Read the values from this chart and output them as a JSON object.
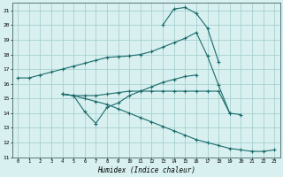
{
  "xlabel": "Humidex (Indice chaleur)",
  "bg_color": "#d8f0f0",
  "grid_color": "#a8d0d0",
  "line_color": "#1a6b6b",
  "xlim": [
    -0.5,
    23.5
  ],
  "ylim": [
    11,
    21.5
  ],
  "yticks": [
    11,
    12,
    13,
    14,
    15,
    16,
    17,
    18,
    19,
    20,
    21
  ],
  "xticks": [
    0,
    1,
    2,
    3,
    4,
    5,
    6,
    7,
    8,
    9,
    10,
    11,
    12,
    13,
    14,
    15,
    16,
    17,
    18,
    19,
    20,
    21,
    22,
    23
  ],
  "s1x": [
    0,
    1,
    2,
    3,
    4,
    5,
    6,
    7,
    8,
    9,
    10,
    11,
    12,
    13,
    14,
    15,
    16,
    17,
    18,
    19,
    20
  ],
  "s1y": [
    16.4,
    16.4,
    16.6,
    16.8,
    17.0,
    17.2,
    17.4,
    17.6,
    17.8,
    17.85,
    17.9,
    18.0,
    18.2,
    18.5,
    18.8,
    19.1,
    19.5,
    17.9,
    15.9,
    14.0,
    13.9
  ],
  "s2x": [
    4,
    5,
    6,
    7,
    8,
    9,
    10,
    11,
    12,
    13,
    14,
    15,
    16,
    17,
    18,
    19
  ],
  "s2y": [
    15.3,
    15.2,
    15.2,
    15.2,
    15.3,
    15.4,
    15.5,
    15.5,
    15.5,
    15.5,
    15.5,
    15.5,
    15.5,
    15.5,
    15.5,
    14.0
  ],
  "s3x": [
    4,
    5,
    6,
    7,
    8,
    9,
    10,
    11,
    12,
    13,
    14,
    15,
    16
  ],
  "s3y": [
    15.3,
    15.2,
    14.1,
    13.3,
    14.4,
    14.7,
    15.2,
    15.5,
    15.8,
    16.1,
    16.3,
    16.5,
    16.6
  ],
  "s4x": [
    4,
    5,
    6,
    7,
    8,
    9,
    10,
    11,
    12,
    13,
    14,
    15,
    16,
    17,
    18,
    19,
    20,
    21,
    22,
    23
  ],
  "s4y": [
    15.3,
    15.2,
    15.0,
    14.8,
    14.6,
    14.3,
    14.0,
    13.7,
    13.4,
    13.1,
    12.8,
    12.5,
    12.2,
    12.0,
    11.8,
    11.6,
    11.5,
    11.4,
    11.4,
    11.5
  ],
  "s5x": [
    13,
    14,
    15,
    16,
    17,
    18
  ],
  "s5y": [
    20.0,
    21.1,
    21.2,
    20.8,
    19.8,
    17.5
  ]
}
